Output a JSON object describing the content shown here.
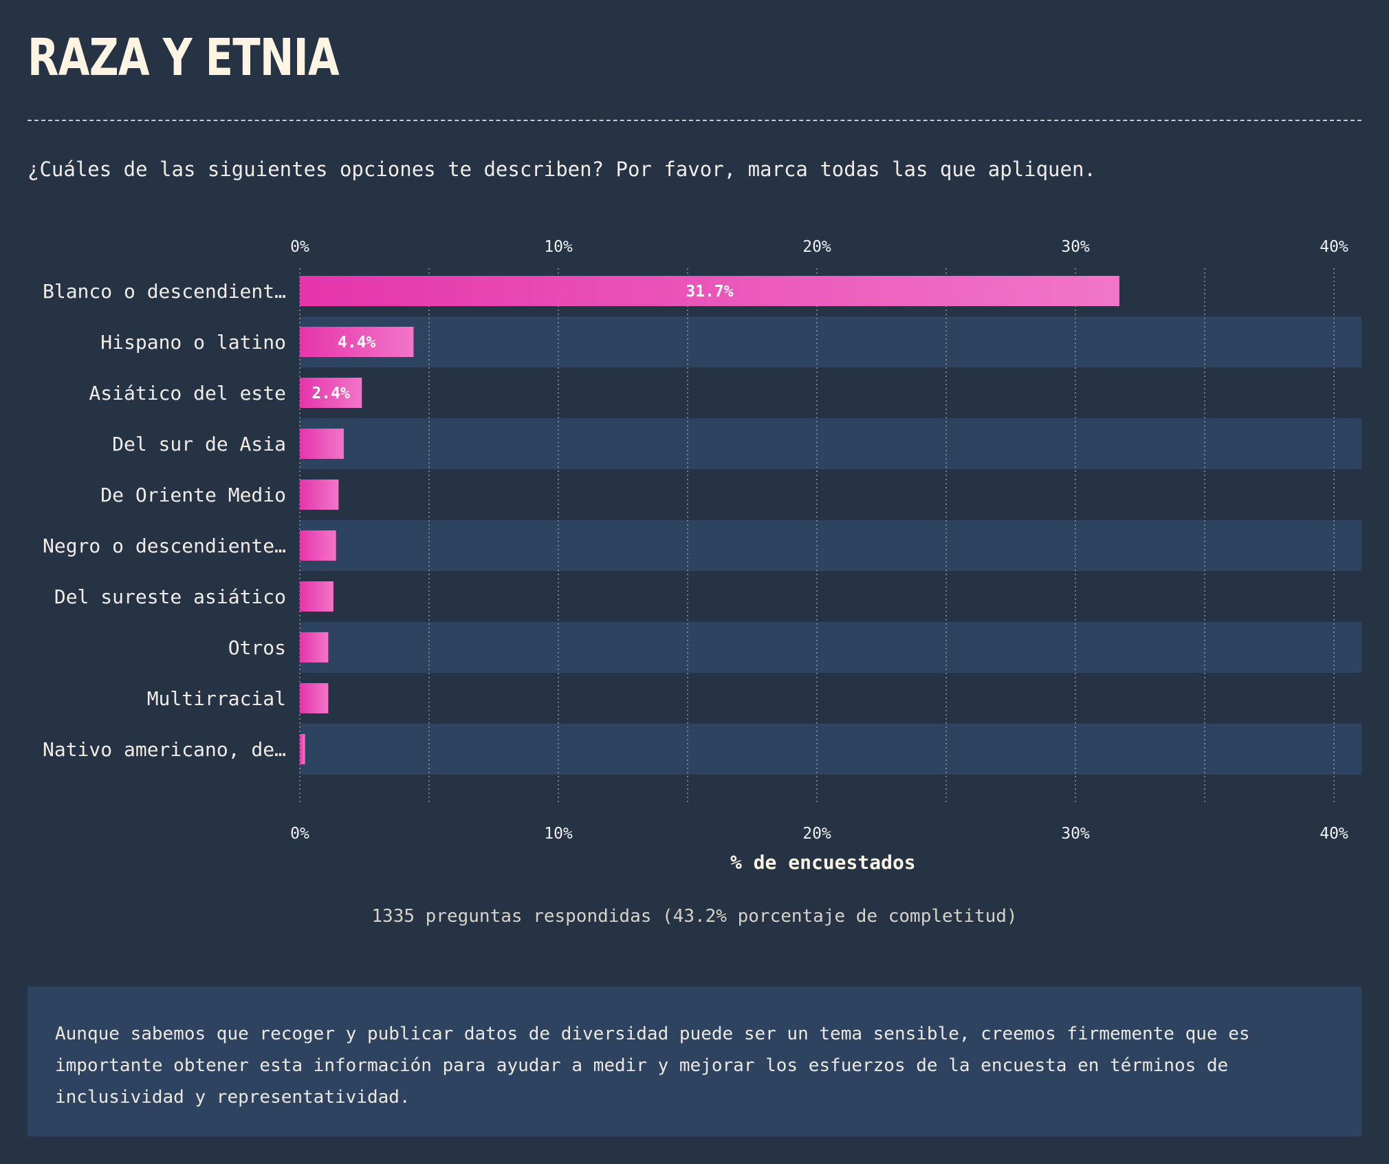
{
  "header": {
    "title": "RAZA Y ETNIA",
    "question": "¿Cuáles de las siguientes opciones te describen? Por favor, marca todas las que apliquen."
  },
  "chart_data": {
    "type": "bar",
    "orientation": "horizontal",
    "categories": [
      "Blanco o descendient…",
      "Hispano o latino",
      "Asiático del este",
      "Del sur de Asia",
      "De Oriente Medio",
      "Negro o descendiente…",
      "Del sureste asiático",
      "Otros",
      "Multirracial",
      "Nativo americano, de…"
    ],
    "values": [
      31.7,
      4.4,
      2.4,
      1.7,
      1.5,
      1.4,
      1.3,
      1.1,
      1.1,
      0.2
    ],
    "data_labels": [
      "31.7%",
      "4.4%",
      "2.4%",
      "",
      "",
      "",
      "",
      "",
      "",
      ""
    ],
    "xlabel": "% de encuestados",
    "xlim": [
      0,
      41
    ],
    "x_ticks": [
      0,
      10,
      20,
      30,
      40
    ],
    "x_tick_labels": [
      "0%",
      "10%",
      "20%",
      "30%",
      "40%"
    ],
    "x_minor_gridlines": [
      5,
      15,
      25,
      35
    ],
    "grid": true,
    "tick_labels_top_and_bottom": true
  },
  "footnote": "1335 preguntas respondidas (43.2% porcentaje de completitud)",
  "info_box": {
    "text": "Aunque sabemos que recoger y publicar datos de diversidad puede ser un tema sensible, creemos firmemente que es importante obtener esta información para ayudar a medir y mejorar los esfuerzos de la encuesta en términos de inclusividad y representatividad."
  },
  "colors": {
    "background": "#253344",
    "band": "#2d4360",
    "bar_start": "#e535ab",
    "bar_end": "#f176c8",
    "title": "#fdf4e3",
    "text": "#f1ede6"
  }
}
